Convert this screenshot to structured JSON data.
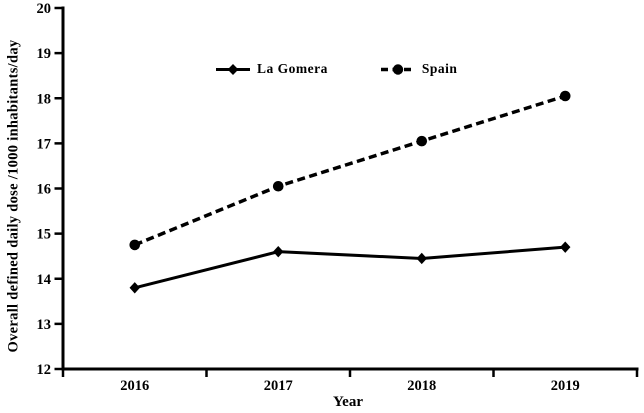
{
  "chart_data": {
    "type": "line",
    "categories": [
      "2016",
      "2017",
      "2018",
      "2019"
    ],
    "series": [
      {
        "name": "La Gomera",
        "values": [
          13.8,
          14.6,
          14.45,
          14.7
        ],
        "line_style": "solid",
        "marker": "diamond",
        "color": "#000000"
      },
      {
        "name": "Spain",
        "values": [
          14.75,
          16.05,
          17.05,
          18.05
        ],
        "line_style": "dashed",
        "marker": "circle",
        "color": "#000000"
      }
    ],
    "title": "",
    "xlabel": "Year",
    "ylabel": "Overall defined daily dose /1000 inhabitants/day",
    "ylim": [
      12,
      20
    ],
    "ytick_step": 1,
    "grid": false,
    "legend_position": "top-center-inside"
  }
}
